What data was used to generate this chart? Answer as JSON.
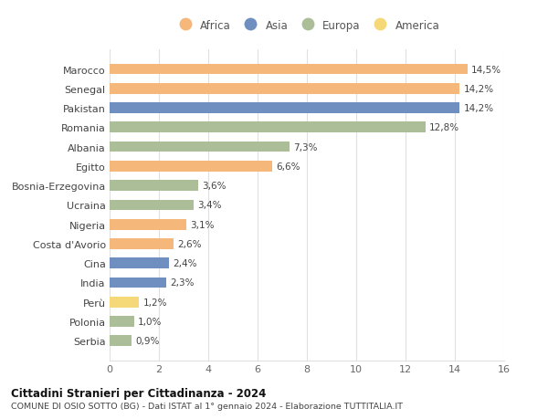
{
  "countries": [
    "Marocco",
    "Senegal",
    "Pakistan",
    "Romania",
    "Albania",
    "Egitto",
    "Bosnia-Erzegovina",
    "Ucraina",
    "Nigeria",
    "Costa d'Avorio",
    "Cina",
    "India",
    "Perù",
    "Polonia",
    "Serbia"
  ],
  "values": [
    14.5,
    14.2,
    14.2,
    12.8,
    7.3,
    6.6,
    3.6,
    3.4,
    3.1,
    2.6,
    2.4,
    2.3,
    1.2,
    1.0,
    0.9
  ],
  "labels": [
    "14,5%",
    "14,2%",
    "14,2%",
    "12,8%",
    "7,3%",
    "6,6%",
    "3,6%",
    "3,4%",
    "3,1%",
    "2,6%",
    "2,4%",
    "2,3%",
    "1,2%",
    "1,0%",
    "0,9%"
  ],
  "continents": [
    "Africa",
    "Africa",
    "Asia",
    "Europa",
    "Europa",
    "Africa",
    "Europa",
    "Europa",
    "Africa",
    "Africa",
    "Asia",
    "Asia",
    "America",
    "Europa",
    "Europa"
  ],
  "bar_colors": [
    "#F5B87A",
    "#F5B87A",
    "#6E8FBF",
    "#ABBE98",
    "#ABBE98",
    "#F5B87A",
    "#ABBE98",
    "#ABBE98",
    "#F5B87A",
    "#F5B87A",
    "#6E8FBF",
    "#6E8FBF",
    "#F5D878",
    "#ABBE98",
    "#ABBE98"
  ],
  "xlim": [
    0,
    16
  ],
  "xticks": [
    0,
    2,
    4,
    6,
    8,
    10,
    12,
    14,
    16
  ],
  "title1": "Cittadini Stranieri per Cittadinanza - 2024",
  "title2": "COMUNE DI OSIO SOTTO (BG) - Dati ISTAT al 1° gennaio 2024 - Elaborazione TUTTITALIA.IT",
  "legend_labels": [
    "Africa",
    "Asia",
    "Europa",
    "America"
  ],
  "legend_colors": [
    "#F5B87A",
    "#6E8FBF",
    "#ABBE98",
    "#F5D878"
  ],
  "background_color": "#ffffff",
  "grid_color": "#e0e0e0"
}
